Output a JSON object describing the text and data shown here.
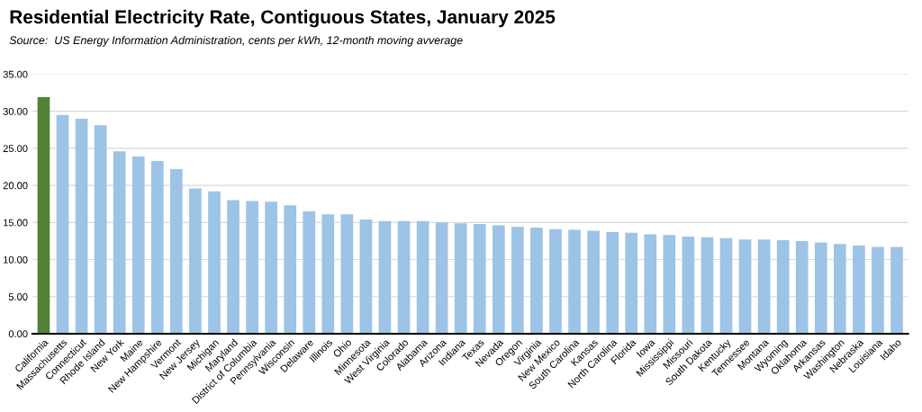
{
  "chart_data": {
    "type": "bar",
    "title": "Residential Electricity Rate, Contiguous States, January 2025",
    "subtitle": "Source:  US Energy Information Administration, cents per kWh, 12-month moving avverage",
    "categories": [
      "California",
      "Massachusetts",
      "Connecticut",
      "Rhode Island",
      "New York",
      "Maine",
      "New Hampshire",
      "Vermont",
      "New Jersey",
      "Michigan",
      "Maryland",
      "District of Columbia",
      "Pennsylvania",
      "Wisconsin",
      "Delaware",
      "Illinois",
      "Ohio",
      "Minnesota",
      "West Virginia",
      "Colorado",
      "Alabama",
      "Arizona",
      "Indiana",
      "Texas",
      "Nevada",
      "Oregon",
      "Virginia",
      "New Mexico",
      "South Carolina",
      "Kansas",
      "North Carolina",
      "Florida",
      "Iowa",
      "Mississippi",
      "Missouri",
      "South Dakota",
      "Kentucky",
      "Tennessee",
      "Montana",
      "Wyoming",
      "Oklahoma",
      "Arkansas",
      "Washington",
      "Nebraska",
      "Louisiana",
      "Idaho"
    ],
    "values": [
      31.9,
      29.5,
      29.0,
      28.1,
      24.6,
      23.9,
      23.3,
      22.2,
      19.6,
      19.2,
      18.0,
      17.9,
      17.8,
      17.3,
      16.5,
      16.1,
      16.1,
      15.4,
      15.2,
      15.2,
      15.2,
      15.0,
      14.9,
      14.8,
      14.6,
      14.4,
      14.3,
      14.1,
      14.0,
      13.9,
      13.7,
      13.6,
      13.4,
      13.3,
      13.1,
      13.0,
      12.9,
      12.7,
      12.7,
      12.6,
      12.5,
      12.3,
      12.1,
      11.9,
      11.7,
      11.7
    ],
    "colors": [
      "#548235",
      "#9dc3e6",
      "#9dc3e6",
      "#9dc3e6",
      "#9dc3e6",
      "#9dc3e6",
      "#9dc3e6",
      "#9dc3e6",
      "#9dc3e6",
      "#9dc3e6",
      "#9dc3e6",
      "#9dc3e6",
      "#9dc3e6",
      "#9dc3e6",
      "#9dc3e6",
      "#9dc3e6",
      "#9dc3e6",
      "#9dc3e6",
      "#9dc3e6",
      "#9dc3e6",
      "#9dc3e6",
      "#9dc3e6",
      "#9dc3e6",
      "#9dc3e6",
      "#9dc3e6",
      "#9dc3e6",
      "#9dc3e6",
      "#9dc3e6",
      "#9dc3e6",
      "#9dc3e6",
      "#9dc3e6",
      "#9dc3e6",
      "#9dc3e6",
      "#9dc3e6",
      "#9dc3e6",
      "#9dc3e6",
      "#9dc3e6",
      "#9dc3e6",
      "#9dc3e6",
      "#9dc3e6",
      "#9dc3e6",
      "#9dc3e6",
      "#9dc3e6",
      "#9dc3e6",
      "#9dc3e6",
      "#9dc3e6"
    ],
    "ylim": [
      0,
      35
    ],
    "yticks": [
      {
        "value": 0,
        "label": "0.00"
      },
      {
        "value": 5,
        "label": "5.00"
      },
      {
        "value": 10,
        "label": "10.00"
      },
      {
        "value": 15,
        "label": "15.00"
      },
      {
        "value": 20,
        "label": "20.00"
      },
      {
        "value": 25,
        "label": "25.00"
      },
      {
        "value": 30,
        "label": "30.00"
      },
      {
        "value": 35,
        "label": "35.00"
      }
    ],
    "grid": "y",
    "legend": false
  }
}
